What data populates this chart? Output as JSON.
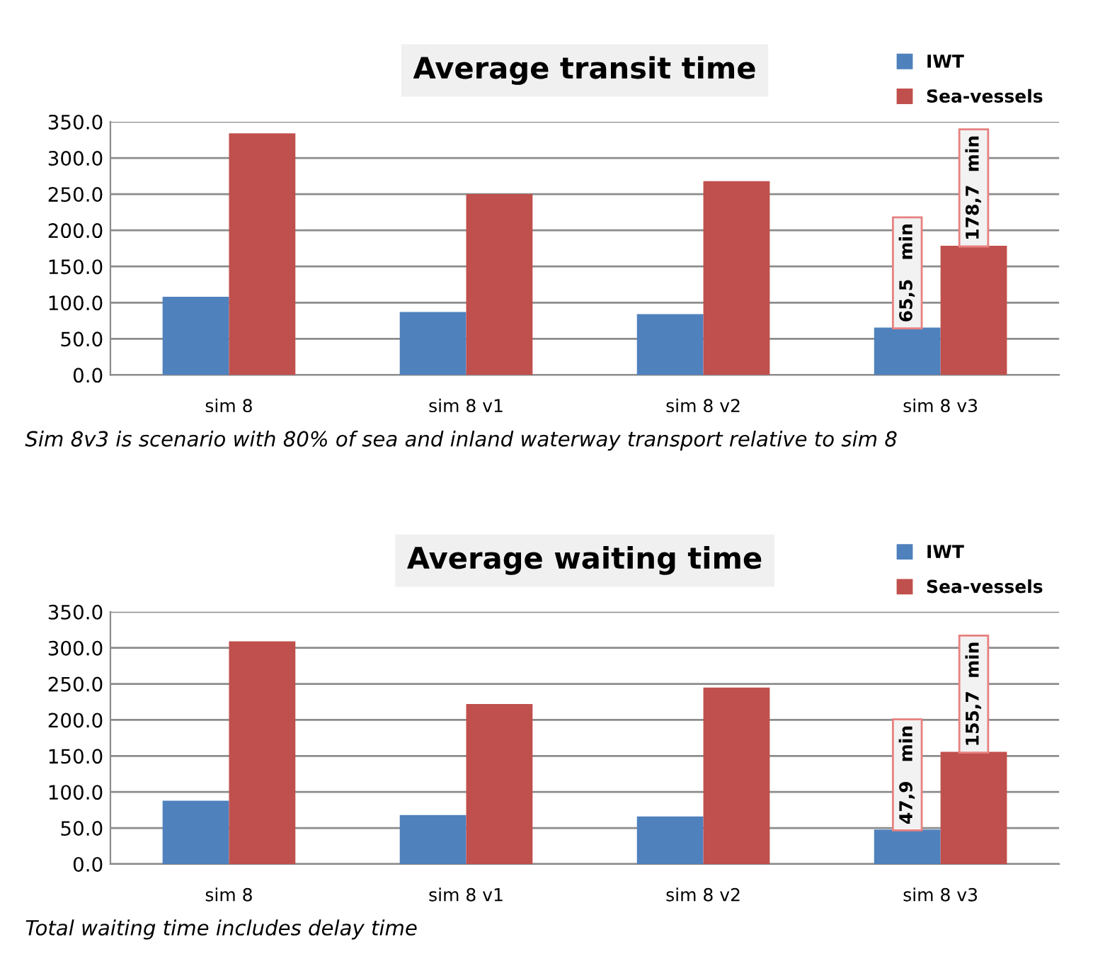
{
  "chart_data": [
    {
      "type": "bar",
      "title": "Average transit time",
      "categories": [
        "sim 8",
        "sim 8 v1",
        "sim 8 v2",
        "sim 8 v3"
      ],
      "series": [
        {
          "name": "IWT",
          "color": "#4f81bd",
          "values": [
            108,
            87,
            84,
            65.5
          ],
          "value_labels": [
            null,
            null,
            null,
            "65,5   min"
          ]
        },
        {
          "name": "Sea-vessels",
          "color": "#c0504d",
          "values": [
            334,
            250,
            268,
            178.7
          ],
          "value_labels": [
            null,
            null,
            null,
            "178,7  min"
          ]
        }
      ],
      "ylim": [
        0,
        350
      ],
      "yticks": [
        {
          "value": 0,
          "label": "0.0"
        },
        {
          "value": 50,
          "label": "50.0"
        },
        {
          "value": 100,
          "label": "100.0"
        },
        {
          "value": 150,
          "label": "150.0"
        },
        {
          "value": 200,
          "label": "200.0"
        },
        {
          "value": 250,
          "label": "250.0"
        },
        {
          "value": 300,
          "label": "300.0"
        },
        {
          "value": 350,
          "label": "350.0"
        }
      ],
      "grid": "y",
      "legend": "top right",
      "annotations": [
        "Sim 8v3 is scenario with 80% of sea and inland waterway transport relative to sim 8"
      ]
    },
    {
      "type": "bar",
      "title": "Average waiting time",
      "categories": [
        "sim 8",
        "sim 8 v1",
        "sim 8 v2",
        "sim 8 v3"
      ],
      "series": [
        {
          "name": "IWT",
          "color": "#4f81bd",
          "values": [
            88,
            68,
            66,
            47.9
          ],
          "value_labels": [
            null,
            null,
            null,
            "47,9   min"
          ]
        },
        {
          "name": "Sea-vessels",
          "color": "#c0504d",
          "values": [
            309,
            222,
            245,
            155.7
          ],
          "value_labels": [
            null,
            null,
            null,
            "155,7  min"
          ]
        }
      ],
      "ylim": [
        0,
        350
      ],
      "yticks": [
        {
          "value": 0,
          "label": "0.0"
        },
        {
          "value": 50,
          "label": "50.0"
        },
        {
          "value": 100,
          "label": "100.0"
        },
        {
          "value": 150,
          "label": "150.0"
        },
        {
          "value": 200,
          "label": "200.0"
        },
        {
          "value": 250,
          "label": "250.0"
        },
        {
          "value": 300,
          "label": "300.0"
        },
        {
          "value": 350,
          "label": "350.0"
        }
      ],
      "grid": "y",
      "legend": "top right",
      "annotations": [
        "Total waiting time includes delay time"
      ]
    }
  ]
}
